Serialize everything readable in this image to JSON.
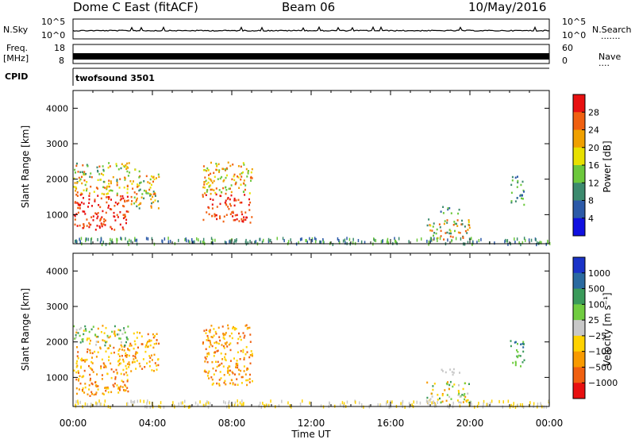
{
  "header": {
    "station": "Dome C East (fitACF)",
    "beam": "Beam 06",
    "date": "10/May/2016"
  },
  "strip": {
    "nsky_label": "N.Sky",
    "nsky_top": "10^5",
    "nsky_bottom": "10^0",
    "nsearch_label": "N.Search",
    "nsearch_dots": ".......",
    "nsearch_top": "10^5",
    "nsearch_bottom": "10^0",
    "freq_label_1": "Freq.",
    "freq_label_2": "[MHz]",
    "freq_top": "18",
    "freq_bottom": "8",
    "nave_label": "Nave",
    "nave_dots": "....",
    "nave_top": "60",
    "nave_bottom": "0",
    "cpid_label": "CPID",
    "cpid_value": "twofsound 3501"
  },
  "chart_data": {
    "type": "heatmap",
    "x_axis": {
      "label": "Time UT",
      "ticks": [
        "00:00",
        "04:00",
        "08:00",
        "12:00",
        "16:00",
        "20:00",
        "00:00"
      ],
      "range_hours": [
        0,
        24
      ]
    },
    "panels": [
      {
        "name": "power",
        "ylabel": "Slant Range [km]",
        "yticks": [
          "4000",
          "3000",
          "2000",
          "1000"
        ],
        "ylim": [
          180,
          4500
        ],
        "colorbar": {
          "label": "Power [dB]",
          "ticks": [
            "28",
            "24",
            "20",
            "16",
            "12",
            "8",
            "4"
          ],
          "colors": [
            "#1010e0",
            "#2c5aa8",
            "#3c8a6e",
            "#6cc83c",
            "#e8e000",
            "#f0a000",
            "#f06010",
            "#e81010"
          ]
        },
        "echo_regions": [
          {
            "t": [
              0.0,
              2.8
            ],
            "r": [
              600,
              1900
            ],
            "level": "high"
          },
          {
            "t": [
              0.0,
              2.8
            ],
            "r": [
              1900,
              2500
            ],
            "level": "mixed"
          },
          {
            "t": [
              2.8,
              4.3
            ],
            "r": [
              1200,
              2300
            ],
            "level": "mixed"
          },
          {
            "t": [
              6.5,
              9.0
            ],
            "r": [
              800,
              2500
            ],
            "level": "high"
          },
          {
            "t": [
              17.8,
              20.0
            ],
            "r": [
              300,
              900
            ],
            "level": "mixed"
          },
          {
            "t": [
              18.5,
              19.5
            ],
            "r": [
              1050,
              1250
            ],
            "level": "low"
          },
          {
            "t": [
              22.0,
              22.7
            ],
            "r": [
              1300,
              2100
            ],
            "level": "low"
          }
        ]
      },
      {
        "name": "velocity",
        "ylabel": "Slant Range [km]",
        "yticks": [
          "4000",
          "3000",
          "2000",
          "1000"
        ],
        "ylim": [
          180,
          4500
        ],
        "colorbar": {
          "label": "Velocity [m s⁻¹]",
          "ticks": [
            "1000",
            "500",
            "100",
            "25",
            "−25",
            "−100",
            "−500",
            "−1000"
          ],
          "colors": [
            "#1a33c8",
            "#2a6aa0",
            "#3a9a5a",
            "#70cc40",
            "#c8c8c8",
            "#ffd200",
            "#f89a00",
            "#f06010",
            "#e81010"
          ]
        },
        "echo_regions": [
          {
            "t": [
              0.0,
              2.8
            ],
            "r": [
              500,
              1900
            ],
            "level": "negative"
          },
          {
            "t": [
              0.0,
              2.8
            ],
            "r": [
              1900,
              2500
            ],
            "level": "mixed"
          },
          {
            "t": [
              2.8,
              4.3
            ],
            "r": [
              1200,
              2300
            ],
            "level": "negative"
          },
          {
            "t": [
              6.5,
              9.0
            ],
            "r": [
              800,
              2500
            ],
            "level": "negative"
          },
          {
            "t": [
              17.8,
              20.0
            ],
            "r": [
              300,
              900
            ],
            "level": "mixed"
          },
          {
            "t": [
              18.5,
              19.5
            ],
            "r": [
              1100,
              1300
            ],
            "level": "neutral"
          },
          {
            "t": [
              22.0,
              22.7
            ],
            "r": [
              1300,
              2100
            ],
            "level": "positive"
          }
        ]
      }
    ]
  }
}
